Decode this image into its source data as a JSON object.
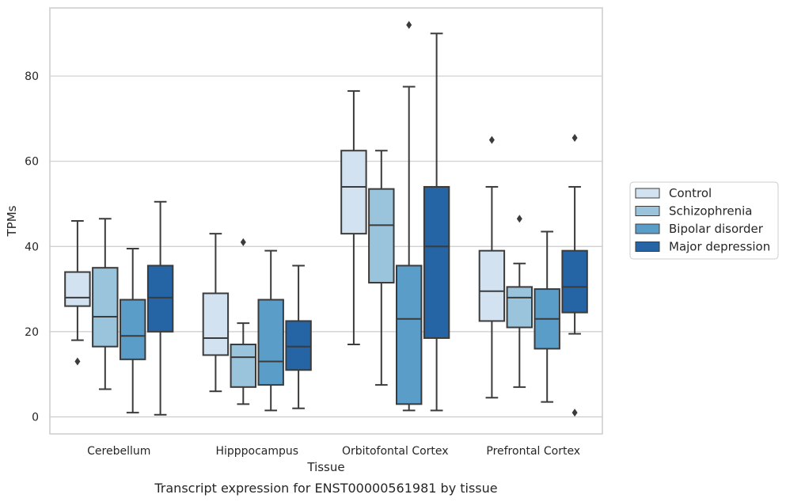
{
  "chart_data": {
    "type": "box",
    "title": "",
    "caption": "Transcript expression for ENST00000561981 by tissue",
    "xlabel": "Tissue",
    "ylabel": "TPMs",
    "ylim": [
      -4,
      96
    ],
    "yticks": [
      0,
      20,
      40,
      60,
      80
    ],
    "grid": "horizontal",
    "legend_position": "right-outside",
    "categories": [
      "Cerebellum",
      "Hipppocampus",
      "Orbitofontal Cortex",
      "Prefrontal Cortex"
    ],
    "series": [
      {
        "name": "Control",
        "color": "#d2e2f1",
        "boxes": [
          {
            "whislo": 18,
            "q1": 26,
            "med": 28,
            "q3": 34,
            "whishi": 46,
            "fliers": [
              13
            ]
          },
          {
            "whislo": 6,
            "q1": 14.5,
            "med": 18.5,
            "q3": 29,
            "whishi": 43,
            "fliers": []
          },
          {
            "whislo": 17,
            "q1": 43,
            "med": 54,
            "q3": 62.5,
            "whishi": 76.5,
            "fliers": []
          },
          {
            "whislo": 4.5,
            "q1": 22.5,
            "med": 29.5,
            "q3": 39,
            "whishi": 54,
            "fliers": [
              65
            ]
          }
        ]
      },
      {
        "name": "Schizophrenia",
        "color": "#9ac3dc",
        "boxes": [
          {
            "whislo": 6.5,
            "q1": 16.5,
            "med": 23.5,
            "q3": 35,
            "whishi": 46.5,
            "fliers": []
          },
          {
            "whislo": 3,
            "q1": 7,
            "med": 14,
            "q3": 17,
            "whishi": 22,
            "fliers": [
              41
            ]
          },
          {
            "whislo": 7.5,
            "q1": 31.5,
            "med": 45,
            "q3": 53.5,
            "whishi": 62.5,
            "fliers": []
          },
          {
            "whislo": 7,
            "q1": 21,
            "med": 28,
            "q3": 30.5,
            "whishi": 36,
            "fliers": [
              46.5
            ]
          }
        ]
      },
      {
        "name": "Bipolar disorder",
        "color": "#5b9dc9",
        "boxes": [
          {
            "whislo": 1,
            "q1": 13.5,
            "med": 19,
            "q3": 27.5,
            "whishi": 39.5,
            "fliers": []
          },
          {
            "whislo": 1.5,
            "q1": 7.5,
            "med": 13,
            "q3": 27.5,
            "whishi": 39,
            "fliers": []
          },
          {
            "whislo": 1.5,
            "q1": 3,
            "med": 23,
            "q3": 35.5,
            "whishi": 77.5,
            "fliers": [
              92
            ]
          },
          {
            "whislo": 3.5,
            "q1": 16,
            "med": 23,
            "q3": 30,
            "whishi": 43.5,
            "fliers": []
          }
        ]
      },
      {
        "name": "Major depression",
        "color": "#2565a5",
        "boxes": [
          {
            "whislo": 0.5,
            "q1": 20,
            "med": 28,
            "q3": 35.5,
            "whishi": 50.5,
            "fliers": []
          },
          {
            "whislo": 2,
            "q1": 11,
            "med": 16.5,
            "q3": 22.5,
            "whishi": 35.5,
            "fliers": []
          },
          {
            "whislo": 1.5,
            "q1": 18.5,
            "med": 40,
            "q3": 54,
            "whishi": 90,
            "fliers": []
          },
          {
            "whislo": 19.5,
            "q1": 24.5,
            "med": 30.5,
            "q3": 39,
            "whishi": 54,
            "fliers": [
              65.5,
              1
            ]
          }
        ]
      }
    ]
  }
}
